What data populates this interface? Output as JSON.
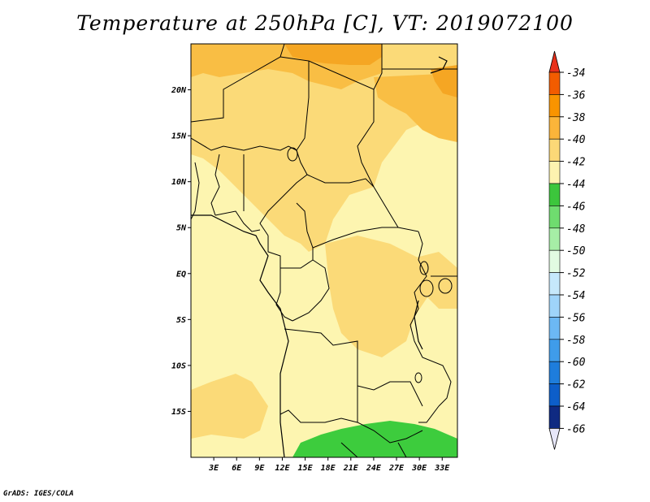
{
  "title": "Temperature at 250hPa [C], VT: 2019072100",
  "footer": "GrADS: IGES/COLA",
  "map": {
    "lon_range": [
      0,
      35
    ],
    "lat_range": [
      -20,
      25
    ],
    "lat_ticks": [
      {
        "value": 20,
        "label": "20N"
      },
      {
        "value": 15,
        "label": "15N"
      },
      {
        "value": 10,
        "label": "10N"
      },
      {
        "value": 5,
        "label": "5N"
      },
      {
        "value": 0,
        "label": "EQ"
      },
      {
        "value": -5,
        "label": "5S"
      },
      {
        "value": -10,
        "label": "10S"
      },
      {
        "value": -15,
        "label": "15S"
      }
    ],
    "lon_ticks": [
      {
        "value": 3,
        "label": "3E"
      },
      {
        "value": 6,
        "label": "6E"
      },
      {
        "value": 9,
        "label": "9E"
      },
      {
        "value": 12,
        "label": "12E"
      },
      {
        "value": 15,
        "label": "15E"
      },
      {
        "value": 18,
        "label": "18E"
      },
      {
        "value": 21,
        "label": "21E"
      },
      {
        "value": 24,
        "label": "24E"
      },
      {
        "value": 27,
        "label": "27E"
      },
      {
        "value": 30,
        "label": "30E"
      },
      {
        "value": 33,
        "label": "33E"
      }
    ],
    "field_colors": {
      "c_minus_36": "#f5a623",
      "c_minus_38": "#f9be44",
      "c_minus_40": "#fbda78",
      "c_minus_42": "#fdf5b0",
      "c_minus_44": "#3dcc3d"
    }
  },
  "colorbar": {
    "labels": [
      "-34",
      "-36",
      "-38",
      "-40",
      "-42",
      "-44",
      "-46",
      "-48",
      "-50",
      "-52",
      "-54",
      "-56",
      "-58",
      "-60",
      "-62",
      "-64",
      "-66"
    ],
    "colors": [
      "#f25c00",
      "#f99400",
      "#fbb53a",
      "#fcd877",
      "#fdf3b0",
      "#3cc63c",
      "#6fdc6f",
      "#a6eea6",
      "#e2fbe2",
      "#c6e8fb",
      "#9fd4fa",
      "#6cb8f4",
      "#3f9cea",
      "#1e7ddc",
      "#0d5ec9",
      "#0f2a82"
    ],
    "top_color": "#e8301a",
    "bottom_color": "#e6e6f8"
  }
}
